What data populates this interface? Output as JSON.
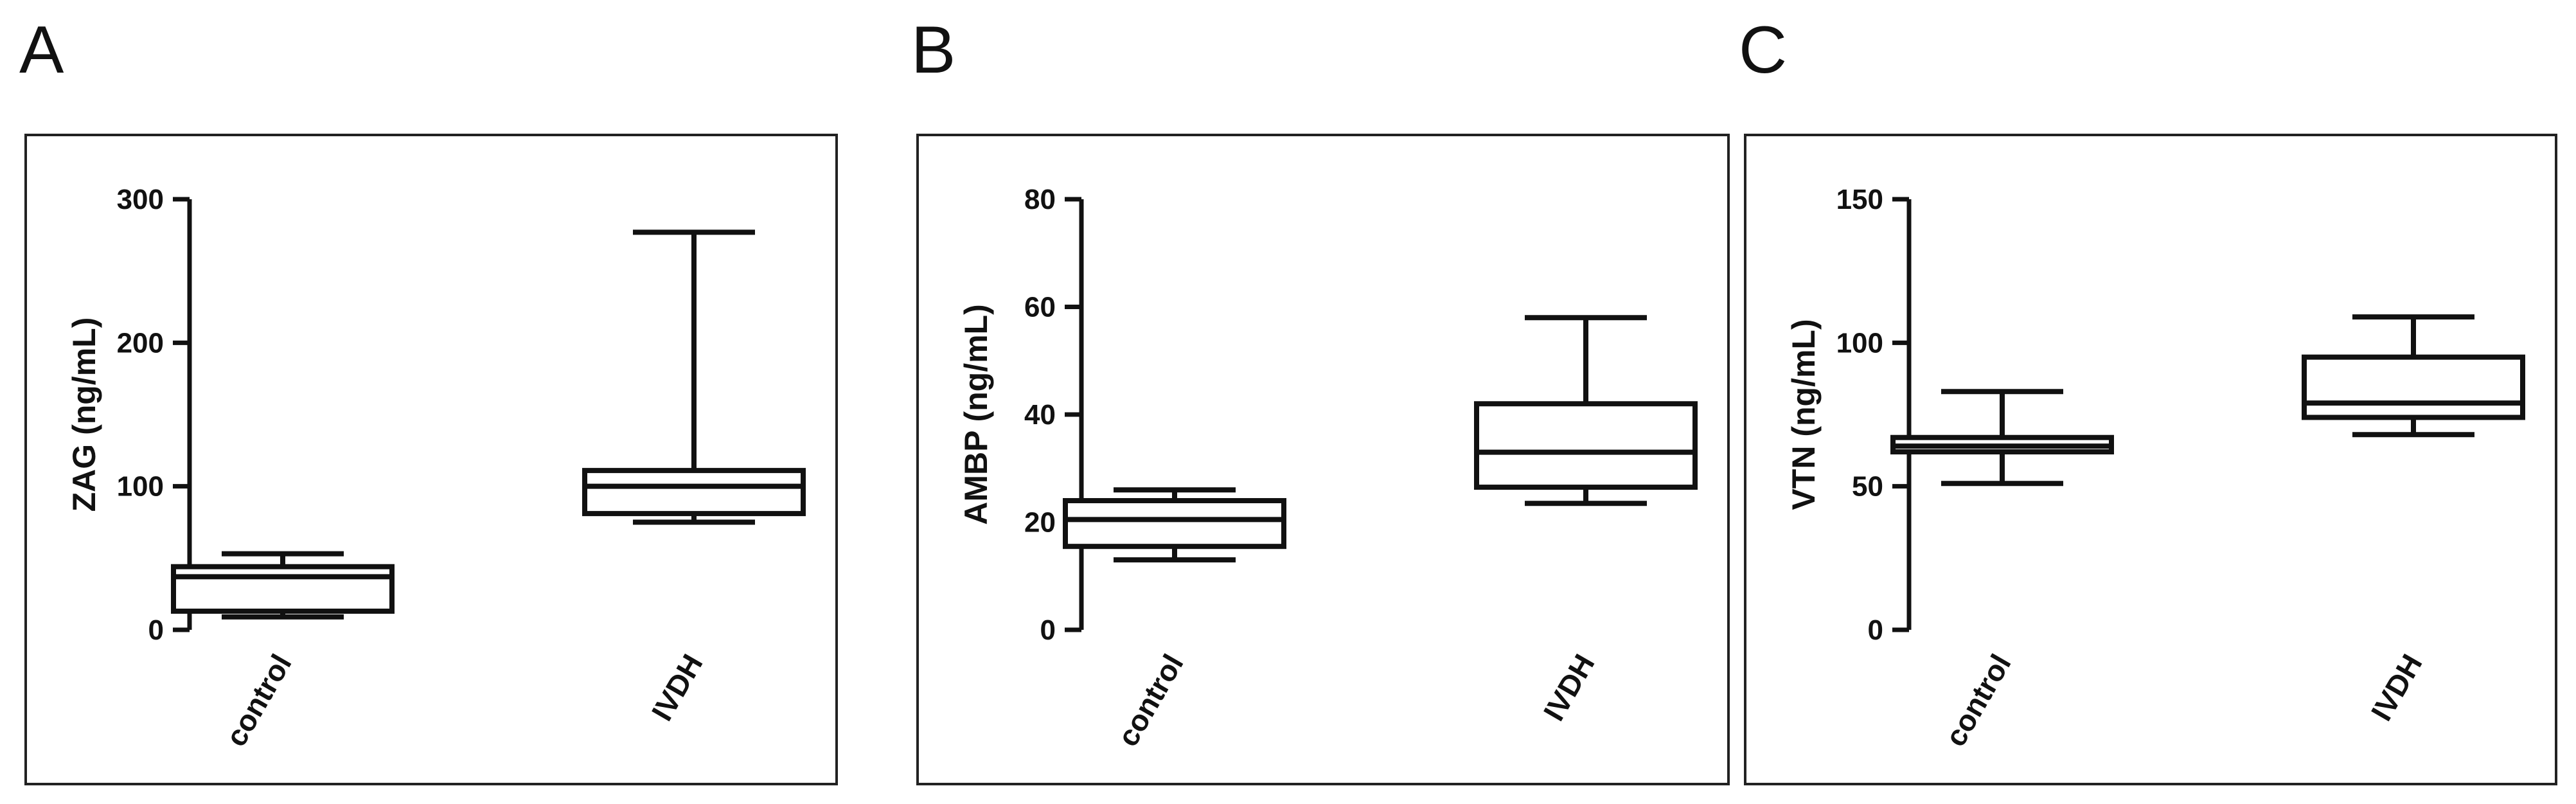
{
  "chart_data": [
    {
      "type": "box",
      "panel_label": "A",
      "ylabel": "ZAG (ng/mL)",
      "ylim": [
        0,
        300
      ],
      "yticks": [
        0,
        100,
        200,
        300
      ],
      "categories": [
        "control",
        "IVDH"
      ],
      "boxes": [
        {
          "category": "control",
          "min": 9,
          "q1": 13,
          "median": 37,
          "q3": 44,
          "max": 53
        },
        {
          "category": "IVDH",
          "min": 75,
          "q1": 81,
          "median": 100,
          "q3": 111,
          "max": 277
        }
      ]
    },
    {
      "type": "box",
      "panel_label": "B",
      "ylabel": "AMBP (ng/mL)",
      "ylim": [
        0,
        80
      ],
      "yticks": [
        0,
        20,
        40,
        60,
        80
      ],
      "categories": [
        "control",
        "IVDH"
      ],
      "boxes": [
        {
          "category": "control",
          "min": 13,
          "q1": 15.5,
          "median": 20.5,
          "q3": 24,
          "max": 26
        },
        {
          "category": "IVDH",
          "min": 23.5,
          "q1": 26.5,
          "median": 33,
          "q3": 42,
          "max": 58
        }
      ]
    },
    {
      "type": "box",
      "panel_label": "C",
      "ylabel": "VTN (ng/mL)",
      "ylim": [
        0,
        150
      ],
      "yticks": [
        0,
        50,
        100,
        150
      ],
      "categories": [
        "control",
        "IVDH"
      ],
      "boxes": [
        {
          "category": "control",
          "min": 51,
          "q1": 62,
          "median": 64,
          "q3": 67,
          "max": 83
        },
        {
          "category": "IVDH",
          "min": 68,
          "q1": 74,
          "median": 79,
          "q3": 95,
          "max": 109
        }
      ]
    }
  ]
}
